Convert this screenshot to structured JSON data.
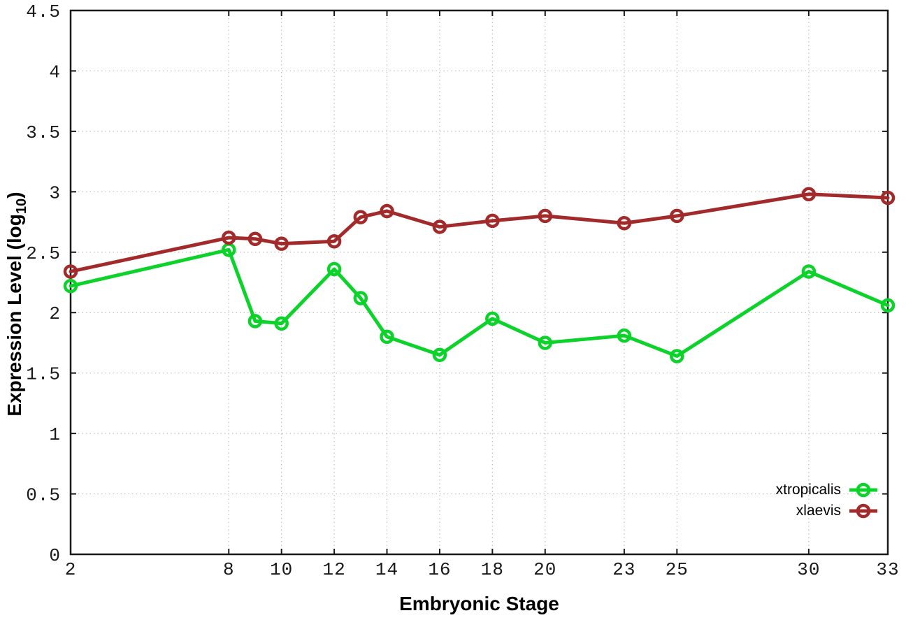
{
  "chart_data": {
    "type": "line",
    "title": "",
    "xlabel": "Embryonic Stage",
    "ylabel": "Expression Level (log10)",
    "ylabel_parts": {
      "text": "Expression Level (log",
      "sub": "10",
      "suffix": ")"
    },
    "xlim": [
      2,
      33
    ],
    "ylim": [
      0,
      4.5
    ],
    "x_ticks": [
      2,
      8,
      10,
      12,
      14,
      16,
      18,
      20,
      23,
      25,
      30,
      33
    ],
    "x_tick_labels": [
      "2",
      "8",
      "10",
      "12",
      "14",
      "16",
      "18",
      "20",
      "23",
      "25",
      "30",
      "33"
    ],
    "y_ticks": [
      0,
      0.5,
      1,
      1.5,
      2,
      2.5,
      3,
      3.5,
      4,
      4.5
    ],
    "y_tick_labels": [
      "0",
      "0.5",
      "1",
      "1.5",
      "2",
      "2.5",
      "3",
      "3.5",
      "4",
      "4.5"
    ],
    "grid": true,
    "legend_position": "bottom-right",
    "marker": "open-circle",
    "x": [
      2,
      8,
      9,
      10,
      12,
      13,
      14,
      16,
      18,
      20,
      23,
      25,
      30,
      33
    ],
    "series": [
      {
        "name": "xtropicalis",
        "color": "#0bd32a",
        "values": [
          2.22,
          2.52,
          1.93,
          1.91,
          2.36,
          2.12,
          1.8,
          1.65,
          1.95,
          1.75,
          1.81,
          1.64,
          2.34,
          2.06
        ]
      },
      {
        "name": "xlaevis",
        "color": "#a32a2a",
        "values": [
          2.34,
          2.62,
          2.61,
          2.57,
          2.59,
          2.79,
          2.84,
          2.71,
          2.76,
          2.8,
          2.74,
          2.8,
          2.98,
          2.95
        ]
      }
    ],
    "colors": {
      "border": "#1a1a1a",
      "grid": "#bcbcbc",
      "tick": "#1a1a1a",
      "text": "#000000"
    }
  }
}
